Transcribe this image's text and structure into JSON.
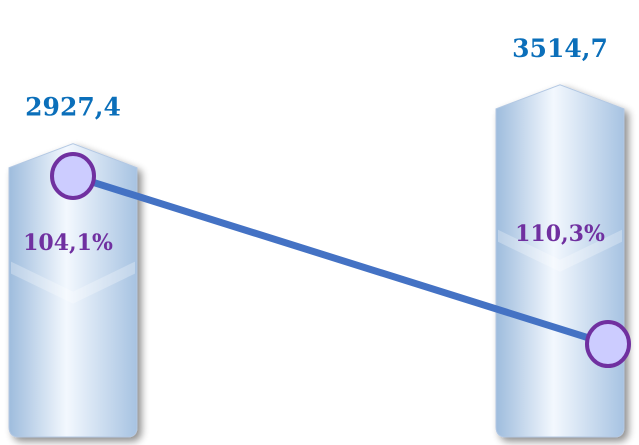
{
  "chart_data": {
    "type": "bar",
    "categories": [
      "",
      ""
    ],
    "series": [
      {
        "values": [
          2927.4,
          3514.7
        ],
        "value_labels": [
          "2927,4",
          "3514,7"
        ],
        "color": "#c9daf0"
      },
      {
        "values": [
          104.1,
          110.3
        ],
        "value_labels": [
          "104,1%",
          "110,3%"
        ],
        "color": "#4472c4",
        "marker_color": "#7030a0",
        "marker_fill": "#ccccff"
      }
    ],
    "title": "",
    "xlabel": "",
    "ylabel": "",
    "grid": false,
    "legend": "none",
    "value_label_color": "#0b6fba",
    "percent_label_color": "#7030a0"
  }
}
